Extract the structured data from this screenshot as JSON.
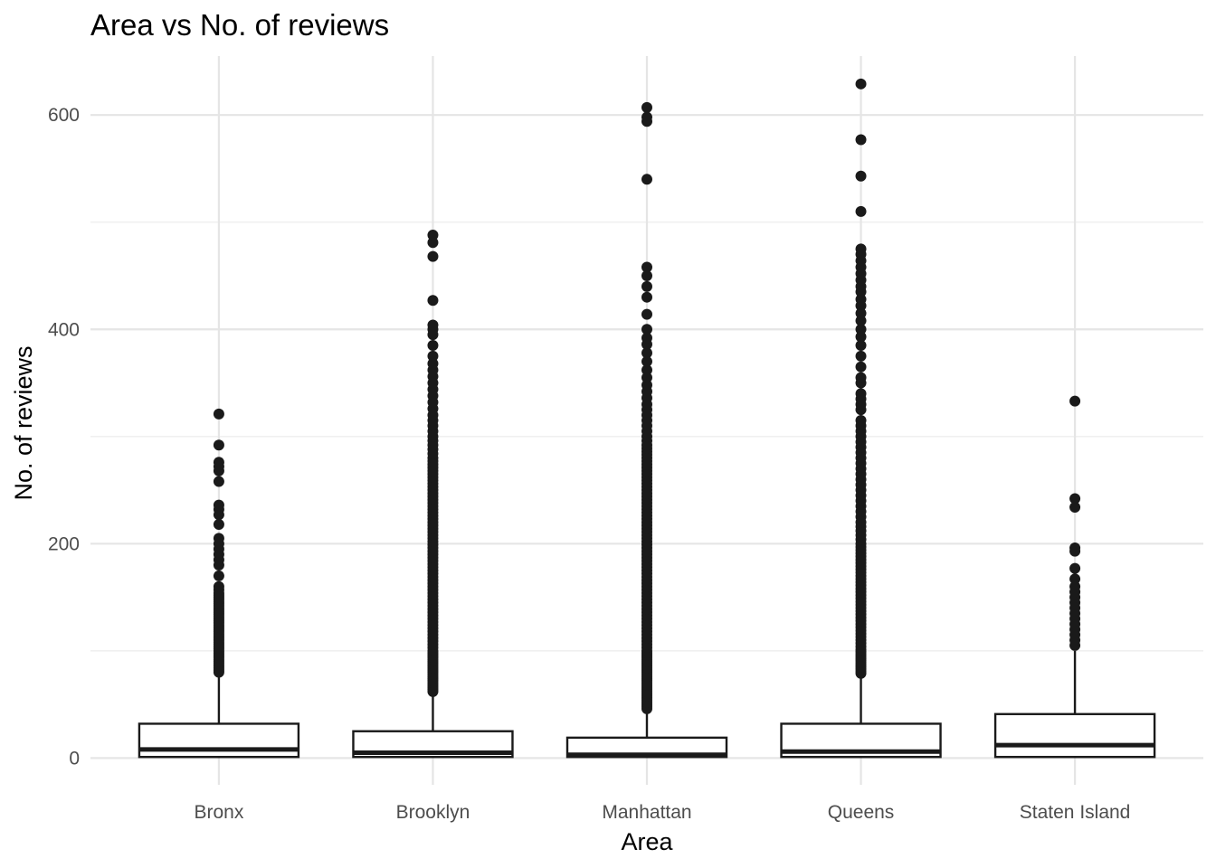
{
  "chart_data": {
    "type": "boxplot",
    "title": "Area vs No. of reviews",
    "xlabel": "Area",
    "ylabel": "No. of reviews",
    "ylim": [
      -25,
      655
    ],
    "y_major_ticks": [
      0,
      200,
      400,
      600
    ],
    "y_minor_ticks": [
      100,
      300,
      500
    ],
    "grid": true,
    "legend": "none",
    "colors": {
      "box_stroke": "#1a1a1a",
      "box_fill": "#ffffff",
      "grid": "#e5e5e5",
      "tick_text": "#4d4d4d"
    },
    "categories": [
      "Bronx",
      "Brooklyn",
      "Manhattan",
      "Queens",
      "Staten Island"
    ],
    "boxes": [
      {
        "category": "Bronx",
        "lower": 0,
        "q1": 1,
        "median": 8,
        "q3": 32,
        "upper": 78,
        "outliers": [
          80,
          82,
          84,
          86,
          88,
          90,
          92,
          94,
          96,
          98,
          100,
          102,
          104,
          106,
          108,
          110,
          112,
          114,
          116,
          118,
          120,
          122,
          124,
          126,
          128,
          130,
          132,
          134,
          136,
          138,
          140,
          142,
          144,
          146,
          148,
          150,
          152,
          154,
          157,
          160,
          170,
          180,
          185,
          190,
          195,
          200,
          205,
          218,
          227,
          232,
          236,
          258,
          268,
          272,
          276,
          292,
          321
        ]
      },
      {
        "category": "Brooklyn",
        "lower": 0,
        "q1": 1,
        "median": 5,
        "q3": 25,
        "upper": 60,
        "outliers": [
          62,
          64,
          66,
          68,
          70,
          72,
          74,
          76,
          78,
          80,
          82,
          84,
          86,
          88,
          90,
          92,
          94,
          96,
          98,
          100,
          103,
          106,
          109,
          112,
          115,
          118,
          121,
          124,
          127,
          130,
          133,
          136,
          139,
          142,
          145,
          148,
          151,
          154,
          157,
          160,
          163,
          166,
          169,
          172,
          175,
          178,
          181,
          184,
          187,
          190,
          193,
          196,
          199,
          202,
          205,
          208,
          211,
          214,
          217,
          220,
          223,
          226,
          229,
          232,
          235,
          238,
          241,
          244,
          247,
          250,
          253,
          256,
          259,
          262,
          265,
          268,
          271,
          274,
          277,
          280,
          284,
          288,
          292,
          296,
          300,
          305,
          310,
          315,
          320,
          326,
          332,
          338,
          344,
          350,
          356,
          362,
          368,
          375,
          385,
          395,
          400,
          404,
          427,
          468,
          481,
          488
        ]
      },
      {
        "category": "Manhattan",
        "lower": 0,
        "q1": 1,
        "median": 3,
        "q3": 19,
        "upper": 44,
        "outliers": [
          46,
          48,
          50,
          52,
          54,
          56,
          58,
          60,
          62,
          64,
          66,
          68,
          70,
          72,
          74,
          76,
          78,
          80,
          82,
          84,
          86,
          88,
          90,
          92,
          94,
          96,
          98,
          100,
          103,
          106,
          109,
          112,
          115,
          118,
          121,
          124,
          127,
          130,
          133,
          136,
          139,
          142,
          145,
          148,
          151,
          154,
          157,
          160,
          163,
          166,
          169,
          172,
          175,
          178,
          181,
          184,
          187,
          190,
          193,
          196,
          199,
          202,
          205,
          208,
          211,
          214,
          217,
          220,
          223,
          226,
          229,
          232,
          235,
          238,
          241,
          244,
          247,
          250,
          253,
          256,
          259,
          262,
          265,
          268,
          271,
          274,
          277,
          280,
          283,
          286,
          289,
          292,
          296,
          300,
          305,
          310,
          315,
          320,
          325,
          330,
          336,
          342,
          348,
          355,
          362,
          370,
          378,
          386,
          392,
          400,
          414,
          430,
          440,
          450,
          458,
          540,
          594,
          598,
          607
        ]
      },
      {
        "category": "Queens",
        "lower": 0,
        "q1": 1,
        "median": 6,
        "q3": 32,
        "upper": 77,
        "outliers": [
          79,
          81,
          83,
          85,
          87,
          89,
          91,
          93,
          95,
          97,
          99,
          101,
          104,
          107,
          110,
          113,
          116,
          119,
          122,
          125,
          128,
          131,
          134,
          137,
          140,
          143,
          146,
          149,
          152,
          155,
          158,
          161,
          164,
          167,
          170,
          173,
          176,
          179,
          182,
          185,
          188,
          191,
          194,
          197,
          200,
          204,
          208,
          212,
          216,
          220,
          225,
          230,
          235,
          240,
          245,
          250,
          255,
          260,
          265,
          270,
          275,
          280,
          285,
          290,
          295,
          300,
          305,
          310,
          315,
          325,
          330,
          335,
          340,
          350,
          355,
          365,
          375,
          385,
          393,
          400,
          408,
          415,
          422,
          428,
          435,
          440,
          446,
          452,
          458,
          464,
          470,
          475,
          510,
          543,
          577,
          629
        ]
      },
      {
        "category": "Staten Island",
        "lower": 0,
        "q1": 1,
        "median": 12,
        "q3": 41,
        "upper": 100,
        "outliers": [
          105,
          110,
          115,
          120,
          125,
          130,
          135,
          140,
          145,
          150,
          155,
          160,
          167,
          177,
          193,
          196,
          234,
          242,
          333
        ]
      }
    ]
  }
}
